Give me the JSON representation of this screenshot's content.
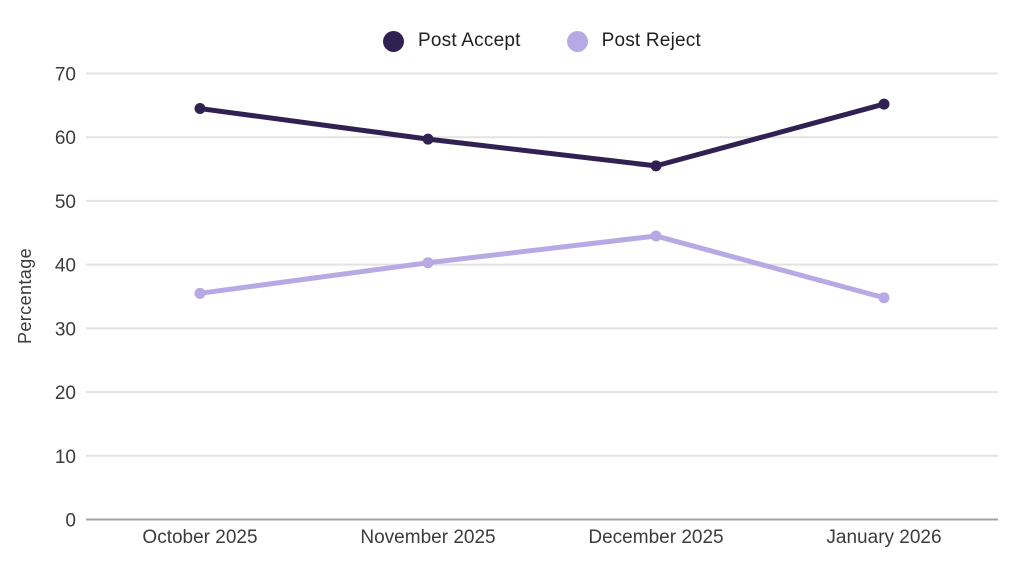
{
  "chart_data": {
    "type": "line",
    "title": "",
    "categories": [
      "October 2025",
      "November 2025",
      "December 2025",
      "January 2026"
    ],
    "series": [
      {
        "name": "Post Accept",
        "color": "#312152",
        "values": [
          64.5,
          59.7,
          55.5,
          65.2
        ]
      },
      {
        "name": "Post Reject",
        "color": "#b7a9e4",
        "values": [
          35.5,
          40.3,
          44.5,
          34.8
        ]
      }
    ],
    "xlabel": "",
    "ylabel": "Percentage",
    "ylim": [
      0,
      70
    ],
    "yticks": [
      0,
      10,
      20,
      30,
      40,
      50,
      60,
      70
    ],
    "grid": true,
    "legend_position": "top",
    "colors": {
      "grid_line": "#e3e3e3",
      "zero_line": "#a3a3a3",
      "tick_text": "#3c3c3c",
      "legend_text": "#212121",
      "background": "#ffffff"
    }
  }
}
